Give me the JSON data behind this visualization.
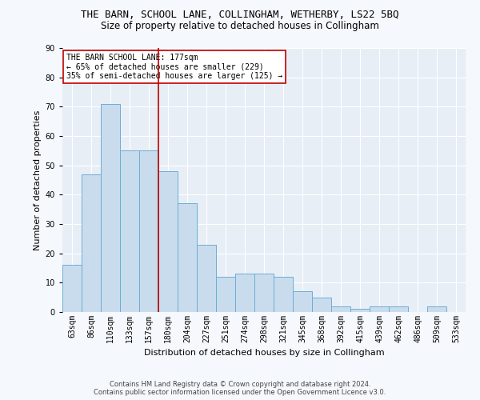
{
  "title": "THE BARN, SCHOOL LANE, COLLINGHAM, WETHERBY, LS22 5BQ",
  "subtitle": "Size of property relative to detached houses in Collingham",
  "xlabel": "Distribution of detached houses by size in Collingham",
  "ylabel": "Number of detached properties",
  "categories": [
    "63sqm",
    "86sqm",
    "110sqm",
    "133sqm",
    "157sqm",
    "180sqm",
    "204sqm",
    "227sqm",
    "251sqm",
    "274sqm",
    "298sqm",
    "321sqm",
    "345sqm",
    "368sqm",
    "392sqm",
    "415sqm",
    "439sqm",
    "462sqm",
    "486sqm",
    "509sqm",
    "533sqm"
  ],
  "values": [
    16,
    47,
    71,
    55,
    55,
    48,
    37,
    23,
    12,
    13,
    13,
    12,
    7,
    5,
    2,
    1,
    2,
    2,
    0,
    2,
    0
  ],
  "bar_color": "#c9dced",
  "bar_edge_color": "#6baed6",
  "reference_line_index": 5,
  "reference_line_color": "#c00000",
  "annotation_line1": "THE BARN SCHOOL LANE: 177sqm",
  "annotation_line2": "← 65% of detached houses are smaller (229)",
  "annotation_line3": "35% of semi-detached houses are larger (125) →",
  "annotation_box_color": "#ffffff",
  "annotation_box_edge_color": "#c00000",
  "ylim": [
    0,
    90
  ],
  "yticks": [
    0,
    10,
    20,
    30,
    40,
    50,
    60,
    70,
    80,
    90
  ],
  "fig_facecolor": "#f5f8fc",
  "plot_facecolor": "#e8eef5",
  "footer_text": "Contains HM Land Registry data © Crown copyright and database right 2024.\nContains public sector information licensed under the Open Government Licence v3.0.",
  "title_fontsize": 9,
  "subtitle_fontsize": 8.5,
  "xlabel_fontsize": 8,
  "ylabel_fontsize": 8,
  "tick_fontsize": 7,
  "annotation_fontsize": 7,
  "footer_fontsize": 6
}
